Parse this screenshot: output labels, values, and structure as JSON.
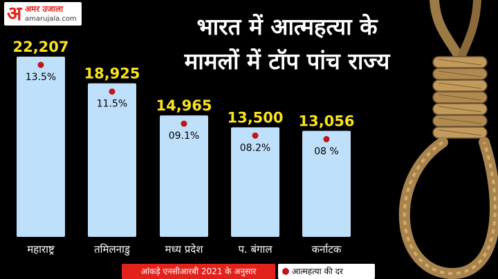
{
  "logo": {
    "mark": "अ",
    "name": "अमर उजाला",
    "site": "amarujala.com"
  },
  "title_lines": [
    "भारत में आत्महत्या के",
    "मामलों में टॉप पांच राज्य"
  ],
  "footer": {
    "source": "आंकड़े एनसीआरबी 2021 के अनुसार",
    "legend_label": "आत्महत्या की दर"
  },
  "icons": [
    "noose-rope-image",
    "rate-dot-icon"
  ],
  "colors": {
    "bar": "#bfe0fb",
    "value_label": "#f9e21e",
    "rate_dot": "#c0151a",
    "brand_red": "#e2221b",
    "background": "#000000"
  },
  "chart_data": {
    "type": "bar",
    "title": "भारत में आत्महत्या के मामलों में टॉप पांच राज्य",
    "categories": [
      "महाराष्ट्र",
      "तमिलनाडु",
      "मध्य प्रदेश",
      "प. बंगाल",
      "कर्नाटक"
    ],
    "series": [
      {
        "values": [
          22207,
          18925,
          14965,
          13500,
          13056
        ],
        "labels": [
          "22,207",
          "18,925",
          "14,965",
          "13,500",
          "13,056"
        ]
      },
      {
        "name": "आत्महत्या की दर",
        "values": [
          13.5,
          11.5,
          9.1,
          8.2,
          8
        ],
        "labels": [
          "13.5%",
          "11.5%",
          "09.1%",
          "08.2%",
          "08 %"
        ]
      }
    ],
    "ylim": [
      0,
      22207
    ],
    "xlabel": "",
    "ylabel": "",
    "grid": false,
    "legend": "bottom"
  }
}
